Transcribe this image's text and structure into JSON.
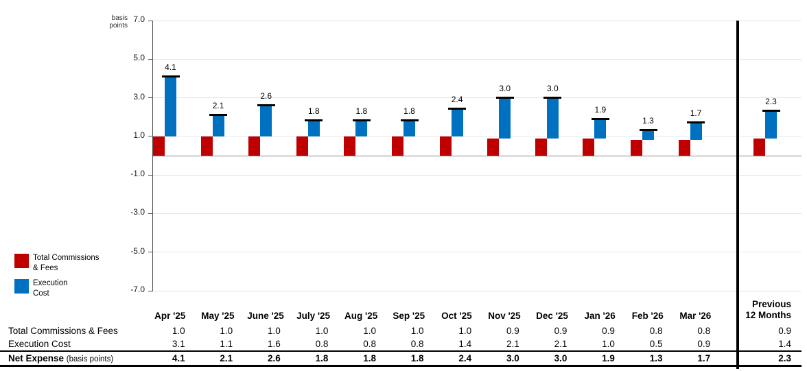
{
  "chart": {
    "unit_label": "basis points",
    "legend": [
      {
        "name": "total-commissions-fees",
        "lines": [
          "Total Commissions",
          "& Fees"
        ],
        "color": "#C00000"
      },
      {
        "name": "execution-cost",
        "lines": [
          "Execution",
          "Cost"
        ],
        "color": "#0070C0"
      }
    ]
  },
  "chart_data": {
    "type": "bar",
    "stacked": true,
    "categories": [
      "Apr '25",
      "May '25",
      "June '25",
      "July '25",
      "Aug '25",
      "Sep '25",
      "Oct '25",
      "Nov '25",
      "Dec '25",
      "Jan '26",
      "Feb '26",
      "Mar '26",
      "Previous 12 Months"
    ],
    "series": [
      {
        "name": "Total Commissions & Fees",
        "color": "#C00000",
        "values": [
          1.0,
          1.0,
          1.0,
          1.0,
          1.0,
          1.0,
          1.0,
          0.9,
          0.9,
          0.9,
          0.8,
          0.8,
          0.9
        ]
      },
      {
        "name": "Execution Cost",
        "color": "#0070C0",
        "values": [
          3.1,
          1.1,
          1.6,
          0.8,
          0.8,
          0.8,
          1.4,
          2.1,
          2.1,
          1.0,
          0.5,
          0.9,
          1.4
        ]
      }
    ],
    "totals": [
      4.1,
      2.1,
      2.6,
      1.8,
      1.8,
      1.8,
      2.4,
      3.0,
      3.0,
      1.9,
      1.3,
      1.7,
      2.3
    ],
    "totals_label": "Net Expense",
    "ylabel": "basis points",
    "ylim": [
      -7,
      7
    ],
    "y_ticks": [
      7,
      5,
      3,
      1,
      -1,
      -3,
      -5,
      -7
    ],
    "grid": true,
    "legend_position": "left-middle",
    "annotations": "net total value labeled above a black cap marker on each stacked bar; thick vertical line separates monthly bars from Previous 12 Months bar"
  },
  "table": {
    "col_headers": [
      "Apr '25",
      "May '25",
      "June '25",
      "July '25",
      "Aug '25",
      "Sep '25",
      "Oct '25",
      "Nov '25",
      "Dec '25",
      "Jan '26",
      "Feb '26",
      "Mar '26"
    ],
    "last_col_header_lines": [
      "Previous",
      "12 Months"
    ],
    "rows": [
      {
        "label": "Total Commissions & Fees",
        "bold": false,
        "values": [
          "1.0",
          "1.0",
          "1.0",
          "1.0",
          "1.0",
          "1.0",
          "1.0",
          "0.9",
          "0.9",
          "0.9",
          "0.8",
          "0.8"
        ],
        "prev": "0.9"
      },
      {
        "label": "Execution Cost",
        "bold": false,
        "values": [
          "3.1",
          "1.1",
          "1.6",
          "0.8",
          "0.8",
          "0.8",
          "1.4",
          "2.1",
          "2.1",
          "1.0",
          "0.5",
          "0.9"
        ],
        "prev": "1.4"
      },
      {
        "label": "Net Expense",
        "suffix": "(basis points)",
        "bold": true,
        "values": [
          "4.1",
          "2.1",
          "2.6",
          "1.8",
          "1.8",
          "1.8",
          "2.4",
          "3.0",
          "3.0",
          "1.9",
          "1.3",
          "1.7"
        ],
        "prev": "2.3"
      }
    ]
  }
}
